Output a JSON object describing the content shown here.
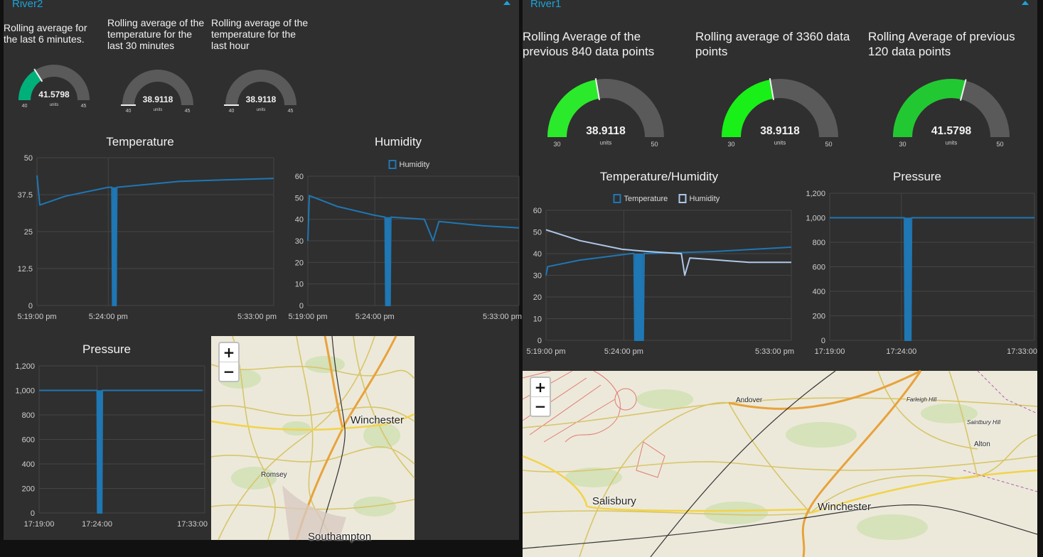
{
  "colors": {
    "accent": "#1ca3d8",
    "panel": "#2f2f2f",
    "series": "#1f77b4",
    "series2": "#aec7e8",
    "gaugeRemainder": "#5a5a5a"
  },
  "river2": {
    "title": "River2",
    "gauges": [
      {
        "title": "Rolling average for\nthe last 6 minutes.",
        "value": "41.5798",
        "units": "units",
        "min": "40",
        "max": "45",
        "color": "#00b07a",
        "fill": 0.32
      },
      {
        "title": "Rolling average of the\ntemperature for the\nlast 30 minutes",
        "value": "38.9118",
        "units": "units",
        "min": "40",
        "max": "45",
        "color": "#e0e0e0",
        "fill": 0.0
      },
      {
        "title": "Rolling average of the\ntemperature for the\nlast hour",
        "value": "38.9118",
        "units": "units",
        "min": "40",
        "max": "45",
        "color": "#e0e0e0",
        "fill": 0.0
      }
    ],
    "map": {
      "zoom_in": "+",
      "zoom_out": "−",
      "labels": [
        "Winchester",
        "Romsey",
        "Southampton"
      ]
    }
  },
  "river1": {
    "title": "River1",
    "gauges": [
      {
        "title": "Rolling Average of the\nprevious 840 data points",
        "value": "38.9118",
        "units": "units",
        "min": "30",
        "max": "50",
        "color": "#2bea2b",
        "fill": 0.446
      },
      {
        "title": "Rolling average of 3360 data\npoints",
        "value": "38.9118",
        "units": "units",
        "min": "30",
        "max": "50",
        "color": "#18f018",
        "fill": 0.446
      },
      {
        "title": "Rolling Average of previous\n120 data points",
        "value": "41.5798",
        "units": "units",
        "min": "30",
        "max": "50",
        "color": "#22c832",
        "fill": 0.579
      }
    ],
    "map": {
      "zoom_in": "+",
      "zoom_out": "−",
      "labels": [
        "Andover",
        "Farleigh Hill",
        "Saintbury Hill",
        "Alton",
        "Salisbury",
        "Winchester"
      ]
    }
  },
  "chart_data": [
    {
      "id": "r2-temp",
      "type": "line",
      "title": "Temperature",
      "ylim": [
        0,
        50
      ],
      "yticks": [
        "0",
        "12.5",
        "25",
        "37.5",
        "50"
      ],
      "xticks": [
        "5:19:00 pm",
        "5:24:00 pm",
        "5:33:00 pm"
      ],
      "series": [
        {
          "values": [
            [
              0,
              44
            ],
            [
              0.2,
              34
            ],
            [
              2,
              37
            ],
            [
              5,
              40
            ],
            [
              5.25,
              40
            ],
            [
              5.3,
              0
            ],
            [
              5.55,
              0
            ],
            [
              5.6,
              40
            ],
            [
              10,
              42
            ],
            [
              13,
              42.5
            ],
            [
              16.6,
              43
            ]
          ]
        }
      ]
    },
    {
      "id": "r2-hum",
      "type": "line",
      "title": "Humidity",
      "ylim": [
        0,
        60
      ],
      "yticks": [
        "0",
        "10",
        "20",
        "30",
        "40",
        "50",
        "60"
      ],
      "xticks": [
        "5:19:00 pm",
        "5:24:00 pm",
        "5:33:00 pm"
      ],
      "series": [
        {
          "name": "Humidity",
          "values": [
            [
              0,
              30
            ],
            [
              0.1,
              51
            ],
            [
              2,
              46
            ],
            [
              4.5,
              42
            ],
            [
              5.3,
              41
            ],
            [
              5.35,
              0
            ],
            [
              5.65,
              0
            ],
            [
              5.7,
              41
            ],
            [
              8,
              40
            ],
            [
              8.6,
              30
            ],
            [
              9,
              39
            ],
            [
              12,
              37
            ],
            [
              14.5,
              36
            ]
          ]
        }
      ]
    },
    {
      "id": "r2-press",
      "type": "line",
      "title": "Pressure",
      "ylim": [
        0,
        1200
      ],
      "yticks": [
        "0",
        "200",
        "400",
        "600",
        "800",
        "1,000",
        "1,200"
      ],
      "xticks": [
        "17:19:00",
        "17:24:00",
        "17:33:00"
      ],
      "series": [
        {
          "values": [
            [
              0,
              1000
            ],
            [
              4.9,
              1000
            ],
            [
              4.95,
              0
            ],
            [
              5.3,
              0
            ],
            [
              5.35,
              1000
            ],
            [
              13.8,
              1000
            ]
          ]
        }
      ]
    },
    {
      "id": "r1-th",
      "type": "line",
      "title": "Temperature/Humidity",
      "ylim": [
        0,
        60
      ],
      "yticks": [
        "0",
        "10",
        "20",
        "30",
        "40",
        "50",
        "60"
      ],
      "xticks": [
        "5:19:00 pm",
        "5:24:00 pm",
        "5:33:00 pm"
      ],
      "series": [
        {
          "name": "Temperature",
          "values": [
            [
              0,
              30
            ],
            [
              0.1,
              34
            ],
            [
              2,
              37
            ],
            [
              5,
              40
            ],
            [
              5.2,
              40
            ],
            [
              5.25,
              0
            ],
            [
              5.75,
              0
            ],
            [
              5.8,
              40
            ],
            [
              10,
              41
            ],
            [
              14.5,
              43
            ]
          ]
        },
        {
          "name": "Humidity",
          "values": [
            [
              0,
              51
            ],
            [
              2,
              46
            ],
            [
              4.5,
              42
            ],
            [
              6,
              41
            ],
            [
              8,
              40
            ],
            [
              8.2,
              30
            ],
            [
              8.5,
              38
            ],
            [
              12,
              36
            ],
            [
              14.5,
              36
            ]
          ]
        }
      ]
    },
    {
      "id": "r1-press",
      "type": "line",
      "title": "Pressure",
      "ylim": [
        0,
        1200
      ],
      "yticks": [
        "0",
        "200",
        "400",
        "600",
        "800",
        "1,000",
        "1,200"
      ],
      "xticks": [
        "17:19:00",
        "17:24:00",
        "17:33:00"
      ],
      "series": [
        {
          "values": [
            [
              0,
              1000
            ],
            [
              5.1,
              1000
            ],
            [
              5.15,
              0
            ],
            [
              5.55,
              0
            ],
            [
              5.6,
              1000
            ],
            [
              14,
              1000
            ]
          ]
        }
      ]
    }
  ]
}
